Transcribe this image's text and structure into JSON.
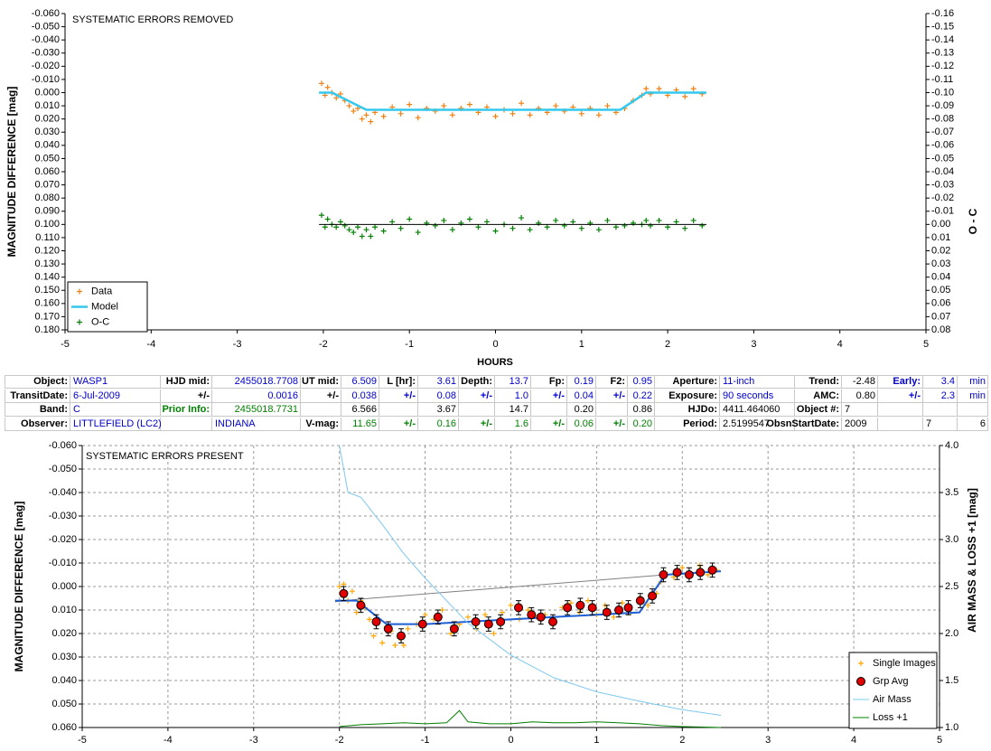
{
  "chart_data": [
    {
      "type": "scatter",
      "title": "SYSTEMATIC ERRORS REMOVED",
      "xlabel": "HOURS",
      "ylabel": "MAGNITUDE DIFFERENCE [mag]",
      "y2label": "O - C",
      "xlim": [
        -5,
        5
      ],
      "xticks": [
        -5,
        -4,
        -3,
        -2,
        -1,
        0,
        1,
        2,
        3,
        4,
        5
      ],
      "ylim": [
        -0.06,
        0.18
      ],
      "y_reversed": true,
      "yticks": [
        {
          "value": -0.06,
          "label": "-0.060"
        },
        {
          "value": -0.05,
          "label": "-0.050"
        },
        {
          "value": -0.04,
          "label": "-0.040"
        },
        {
          "value": -0.03,
          "label": "-0.030"
        },
        {
          "value": -0.02,
          "label": "-0.020"
        },
        {
          "value": -0.01,
          "label": "-0.010"
        },
        {
          "value": 0,
          "label": "0.000"
        },
        {
          "value": 0.01,
          "label": "0.010"
        },
        {
          "value": 0.02,
          "label": "0.020"
        },
        {
          "value": 0.03,
          "label": "0.030"
        },
        {
          "value": 0.04,
          "label": "0.040"
        },
        {
          "value": 0.05,
          "label": "0.050"
        },
        {
          "value": 0.06,
          "label": "0.060"
        },
        {
          "value": 0.07,
          "label": "0.070"
        },
        {
          "value": 0.08,
          "label": "0.080"
        },
        {
          "value": 0.09,
          "label": "0.090"
        },
        {
          "value": 0.1,
          "label": "0.100"
        },
        {
          "value": 0.11,
          "label": "0.110"
        },
        {
          "value": 0.12,
          "label": "0.120"
        },
        {
          "value": 0.13,
          "label": "0.130"
        },
        {
          "value": 0.14,
          "label": "0.140"
        },
        {
          "value": 0.15,
          "label": "0.150"
        },
        {
          "value": 0.16,
          "label": "0.160"
        },
        {
          "value": 0.17,
          "label": "0.170"
        },
        {
          "value": 0.18,
          "label": "0.180"
        }
      ],
      "y2lim": [
        -0.16,
        0.08
      ],
      "y2_reversed": true,
      "y2ticks": [
        {
          "value": -0.16,
          "label": "-0.16"
        },
        {
          "value": -0.15,
          "label": "-0.15"
        },
        {
          "value": -0.14,
          "label": "-0.14"
        },
        {
          "value": -0.13,
          "label": "-0.13"
        },
        {
          "value": -0.12,
          "label": "-0.12"
        },
        {
          "value": -0.11,
          "label": "-0.11"
        },
        {
          "value": -0.1,
          "label": "-0.10"
        },
        {
          "value": -0.09,
          "label": "-0.09"
        },
        {
          "value": -0.08,
          "label": "-0.08"
        },
        {
          "value": -0.07,
          "label": "-0.07"
        },
        {
          "value": -0.06,
          "label": "-0.06"
        },
        {
          "value": -0.05,
          "label": "-0.05"
        },
        {
          "value": -0.04,
          "label": "-0.04"
        },
        {
          "value": -0.03,
          "label": "-0.03"
        },
        {
          "value": -0.02,
          "label": "-0.02"
        },
        {
          "value": -0.01,
          "label": "-0.01"
        },
        {
          "value": 0,
          "label": "0.00"
        },
        {
          "value": 0.01,
          "label": "0.01"
        },
        {
          "value": 0.02,
          "label": "0.02"
        },
        {
          "value": 0.03,
          "label": "0.03"
        },
        {
          "value": 0.04,
          "label": "0.04"
        },
        {
          "value": 0.05,
          "label": "0.05"
        },
        {
          "value": 0.06,
          "label": "0.06"
        },
        {
          "value": 0.07,
          "label": "0.07"
        },
        {
          "value": 0.08,
          "label": "0.08"
        }
      ],
      "grid": false,
      "legend": "lower left",
      "series": [
        {
          "name": "Data",
          "color": "#f07f10",
          "mode": "markers",
          "marker": "plus",
          "x": [
            -2.02,
            -1.98,
            -1.95,
            -1.9,
            -1.85,
            -1.8,
            -1.75,
            -1.7,
            -1.65,
            -1.6,
            -1.55,
            -1.5,
            -1.45,
            -1.4,
            -1.3,
            -1.2,
            -1.1,
            -1.0,
            -0.9,
            -0.8,
            -0.7,
            -0.6,
            -0.5,
            -0.4,
            -0.3,
            -0.2,
            -0.1,
            0.0,
            0.1,
            0.2,
            0.3,
            0.4,
            0.5,
            0.6,
            0.7,
            0.8,
            0.9,
            1.0,
            1.1,
            1.2,
            1.3,
            1.4,
            1.5,
            1.6,
            1.7,
            1.75,
            1.8,
            1.9,
            2.0,
            2.1,
            2.2,
            2.3,
            2.4
          ],
          "values": [
            -0.007,
            0.002,
            -0.004,
            0.0,
            0.004,
            0.001,
            0.006,
            0.01,
            0.014,
            0.012,
            0.02,
            0.017,
            0.022,
            0.015,
            0.018,
            0.011,
            0.016,
            0.009,
            0.019,
            0.012,
            0.014,
            0.01,
            0.017,
            0.012,
            0.009,
            0.015,
            0.011,
            0.018,
            0.013,
            0.016,
            0.008,
            0.017,
            0.012,
            0.015,
            0.01,
            0.014,
            0.011,
            0.016,
            0.012,
            0.017,
            0.01,
            0.015,
            0.012,
            0.006,
            0.002,
            -0.003,
            0.001,
            -0.003,
            0.002,
            -0.002,
            0.003,
            -0.003,
            0.001
          ]
        },
        {
          "name": "Model",
          "color": "#33c8ee",
          "mode": "lines",
          "width": 2.5,
          "x": [
            -2.05,
            -1.9,
            -1.5,
            1.45,
            1.75,
            2.45
          ],
          "values": [
            0,
            0,
            0.013,
            0.013,
            0,
            0
          ]
        },
        {
          "name": "O-C",
          "color": "#008000",
          "mode": "markers",
          "marker": "plus",
          "axis": "y2",
          "x": [
            -2.02,
            -1.98,
            -1.95,
            -1.9,
            -1.85,
            -1.8,
            -1.75,
            -1.7,
            -1.65,
            -1.6,
            -1.55,
            -1.5,
            -1.45,
            -1.4,
            -1.3,
            -1.2,
            -1.1,
            -1.0,
            -0.9,
            -0.8,
            -0.7,
            -0.6,
            -0.5,
            -0.4,
            -0.3,
            -0.2,
            -0.1,
            0.0,
            0.1,
            0.2,
            0.3,
            0.4,
            0.5,
            0.6,
            0.7,
            0.8,
            0.9,
            1.0,
            1.1,
            1.2,
            1.3,
            1.4,
            1.5,
            1.6,
            1.7,
            1.75,
            1.8,
            1.9,
            2.0,
            2.1,
            2.2,
            2.3,
            2.4
          ],
          "values": [
            -0.007,
            0.002,
            -0.004,
            0.0,
            0.002,
            -0.002,
            0.001,
            0.004,
            0.006,
            0.002,
            0.009,
            0.004,
            0.009,
            0.002,
            0.005,
            -0.002,
            0.003,
            -0.004,
            0.006,
            -0.001,
            0.001,
            -0.003,
            0.004,
            -0.001,
            -0.004,
            0.002,
            -0.002,
            0.005,
            0.0,
            0.003,
            -0.005,
            0.004,
            -0.001,
            0.002,
            -0.003,
            0.001,
            -0.002,
            0.003,
            -0.001,
            0.004,
            -0.003,
            0.002,
            0.001,
            -0.001,
            0.0,
            -0.003,
            0.001,
            -0.003,
            0.002,
            -0.002,
            0.003,
            -0.003,
            0.001
          ]
        },
        {
          "color": "#000000",
          "mode": "lines",
          "width": 1,
          "axis": "y2",
          "x": [
            -2.05,
            2.45
          ],
          "values": [
            0,
            0
          ]
        }
      ]
    },
    {
      "type": "scatter",
      "title": "SYSTEMATIC ERRORS PRESENT",
      "ylabel": "MAGNITUDE DIFFERENCE [mag]",
      "y2label": "AIR MASS & LOSS +1 [mag]",
      "xlim": [
        -5,
        5
      ],
      "xticks": [
        -5,
        -4,
        -3,
        -2,
        -1,
        0,
        1,
        2,
        3,
        4,
        5
      ],
      "ylim": [
        -0.06,
        0.06
      ],
      "y_reversed": true,
      "yticks": [
        {
          "value": -0.06,
          "label": "-0.060"
        },
        {
          "value": -0.05,
          "label": "-0.050"
        },
        {
          "value": -0.04,
          "label": "-0.040"
        },
        {
          "value": -0.03,
          "label": "-0.030"
        },
        {
          "value": -0.02,
          "label": "-0.020"
        },
        {
          "value": -0.01,
          "label": "-0.010"
        },
        {
          "value": 0,
          "label": "0.000"
        },
        {
          "value": 0.01,
          "label": "0.010"
        },
        {
          "value": 0.02,
          "label": "0.020"
        },
        {
          "value": 0.03,
          "label": "0.030"
        },
        {
          "value": 0.04,
          "label": "0.040"
        },
        {
          "value": 0.05,
          "label": "0.050"
        },
        {
          "value": 0.06,
          "label": "0.060"
        }
      ],
      "y2lim": [
        1,
        4
      ],
      "y2_reversed": false,
      "y2ticks": [
        {
          "value": 1,
          "label": "1.0"
        },
        1.5,
        {
          "value": 2,
          "label": "2.0"
        },
        2.5,
        {
          "value": 3,
          "label": "3.0"
        },
        3.5,
        {
          "value": 4,
          "label": "4.0"
        }
      ],
      "grid": true,
      "legend": "lower right",
      "series": [
        {
          "name": "Single Images",
          "color": "#ffa500",
          "mode": "markers",
          "marker": "plus",
          "x": [
            -2.0,
            -1.95,
            -1.9,
            -1.85,
            -1.8,
            -1.75,
            -1.7,
            -1.65,
            -1.6,
            -1.55,
            -1.5,
            -1.45,
            -1.4,
            -1.35,
            -1.3,
            -1.25,
            -1.2,
            -1.1,
            -1.0,
            -0.9,
            -0.8,
            -0.7,
            -0.6,
            -0.5,
            -0.4,
            -0.3,
            -0.2,
            -0.1,
            0.0,
            0.1,
            0.2,
            0.3,
            0.4,
            0.5,
            0.6,
            0.7,
            0.8,
            0.9,
            1.0,
            1.1,
            1.2,
            1.3,
            1.4,
            1.5,
            1.6,
            1.7,
            1.75,
            1.8,
            1.9,
            2.0,
            2.1,
            2.2,
            2.3,
            2.4
          ],
          "values": [
            0.0,
            -0.001,
            0.006,
            0.002,
            0.011,
            0.006,
            0.009,
            0.014,
            0.021,
            0.015,
            0.024,
            0.017,
            0.019,
            0.025,
            0.022,
            0.025,
            0.018,
            0.016,
            0.012,
            0.014,
            0.01,
            0.02,
            0.016,
            0.013,
            0.018,
            0.012,
            0.02,
            0.011,
            0.008,
            0.014,
            0.01,
            0.013,
            0.012,
            0.016,
            0.009,
            0.007,
            0.011,
            0.006,
            0.012,
            0.008,
            0.013,
            0.007,
            0.011,
            0.005,
            0.008,
            0.003,
            -0.002,
            -0.006,
            -0.004,
            -0.008,
            -0.005,
            -0.009,
            -0.005,
            -0.007
          ]
        },
        {
          "color": "#808080",
          "mode": "lines",
          "width": 1,
          "x": [
            -2.05,
            -1.8,
            1.8,
            2.45
          ],
          "values": [
            0.0065,
            0.0055,
            -0.005,
            -0.0065
          ]
        },
        {
          "color": "#1f5fd6",
          "mode": "lines",
          "width": 2,
          "x": [
            -2.05,
            -1.8,
            -1.45,
            -1.0,
            1.5,
            1.8,
            2.45
          ],
          "values": [
            0.006,
            0.006,
            0.016,
            0.016,
            0.011,
            -0.005,
            -0.0065
          ]
        },
        {
          "name": "Grp Avg",
          "color": "#e00000",
          "mode": "markers",
          "marker": "circle",
          "x": [
            -1.95,
            -1.75,
            -1.57,
            -1.43,
            -1.28,
            -1.03,
            -0.85,
            -0.66,
            -0.41,
            -0.26,
            -0.12,
            0.09,
            0.24,
            0.35,
            0.49,
            0.66,
            0.81,
            0.95,
            1.12,
            1.26,
            1.37,
            1.51,
            1.65,
            1.78,
            1.94,
            2.08,
            2.21,
            2.35
          ],
          "values": [
            0.003,
            0.008,
            0.015,
            0.018,
            0.021,
            0.016,
            0.013,
            0.018,
            0.015,
            0.016,
            0.015,
            0.009,
            0.012,
            0.013,
            0.015,
            0.009,
            0.008,
            0.009,
            0.011,
            0.01,
            0.009,
            0.006,
            0.004,
            -0.005,
            -0.006,
            -0.005,
            -0.006,
            -0.007
          ],
          "errors": [
            0.003,
            0.003,
            0.003,
            0.003,
            0.003,
            0.003,
            0.003,
            0.003,
            0.003,
            0.003,
            0.003,
            0.003,
            0.003,
            0.003,
            0.003,
            0.003,
            0.003,
            0.003,
            0.003,
            0.003,
            0.003,
            0.003,
            0.003,
            0.003,
            0.003,
            0.003,
            0.003,
            0.003
          ]
        },
        {
          "name": "Air Mass",
          "color": "#7ec8f0",
          "mode": "lines",
          "width": 1,
          "axis": "y2",
          "x": [
            -2.0,
            -1.9,
            -1.75,
            -1.5,
            -1.25,
            -1.0,
            -0.5,
            0.0,
            0.5,
            1.0,
            1.5,
            2.0,
            2.45
          ],
          "values": [
            4.0,
            3.5,
            3.45,
            3.16,
            2.85,
            2.59,
            2.11,
            1.77,
            1.53,
            1.38,
            1.28,
            1.19,
            1.13
          ]
        },
        {
          "name": "Loss +1",
          "color": "#008000",
          "mode": "lines",
          "width": 1,
          "axis": "y2",
          "x": [
            -2.0,
            -1.75,
            -1.5,
            -1.25,
            -1.0,
            -0.75,
            -0.6,
            -0.5,
            -0.25,
            0.0,
            0.25,
            0.5,
            0.75,
            1.0,
            1.25,
            1.5,
            1.75,
            2.0,
            2.45
          ],
          "values": [
            1.01,
            1.03,
            1.04,
            1.05,
            1.04,
            1.05,
            1.18,
            1.06,
            1.04,
            1.04,
            1.06,
            1.05,
            1.05,
            1.06,
            1.05,
            1.04,
            1.02,
            1.01,
            1.0
          ]
        }
      ]
    }
  ],
  "table": {
    "rows": [
      [
        "Object:",
        "WASP1",
        "HJD mid:",
        "2455018.7708",
        "UT mid:",
        "6.509",
        "L [hr]:",
        "3.61",
        "Depth:",
        "13.7",
        "Fp:",
        "0.19",
        "F2:",
        "0.95",
        "Aperture:",
        "11-inch",
        "Trend:",
        "-2.48",
        "Early:",
        "3.4",
        "min"
      ],
      [
        "TransitDate:",
        "6-Jul-2009",
        "+/-",
        "0.0016",
        "+/-",
        "0.038",
        "+/-",
        "0.08",
        "+/-",
        "1.0",
        "+/-",
        "0.04",
        "+/-",
        "0.22",
        "Exposure:",
        "90 seconds",
        "AMC:",
        "0.80",
        "+/-",
        "2.3",
        "min"
      ],
      [
        "Band:",
        "C",
        "Prior Info:",
        "2455018.7731",
        "6.566",
        "3.67",
        "14.7",
        "0.20",
        "0.86",
        "HJDo:",
        "4411.464060",
        "Object #:",
        "7"
      ],
      [
        "Observer:",
        "LITTLEFIELD (LC2)",
        "INDIANA",
        "V-mag:",
        "11.65",
        "+/-",
        "0.16",
        "+/-",
        "1.6",
        "+/-",
        "0.06",
        "+/-",
        "0.20",
        "Period:",
        "2.5199547",
        "ObsnStartDate:",
        "2009",
        "7",
        "6"
      ]
    ]
  }
}
